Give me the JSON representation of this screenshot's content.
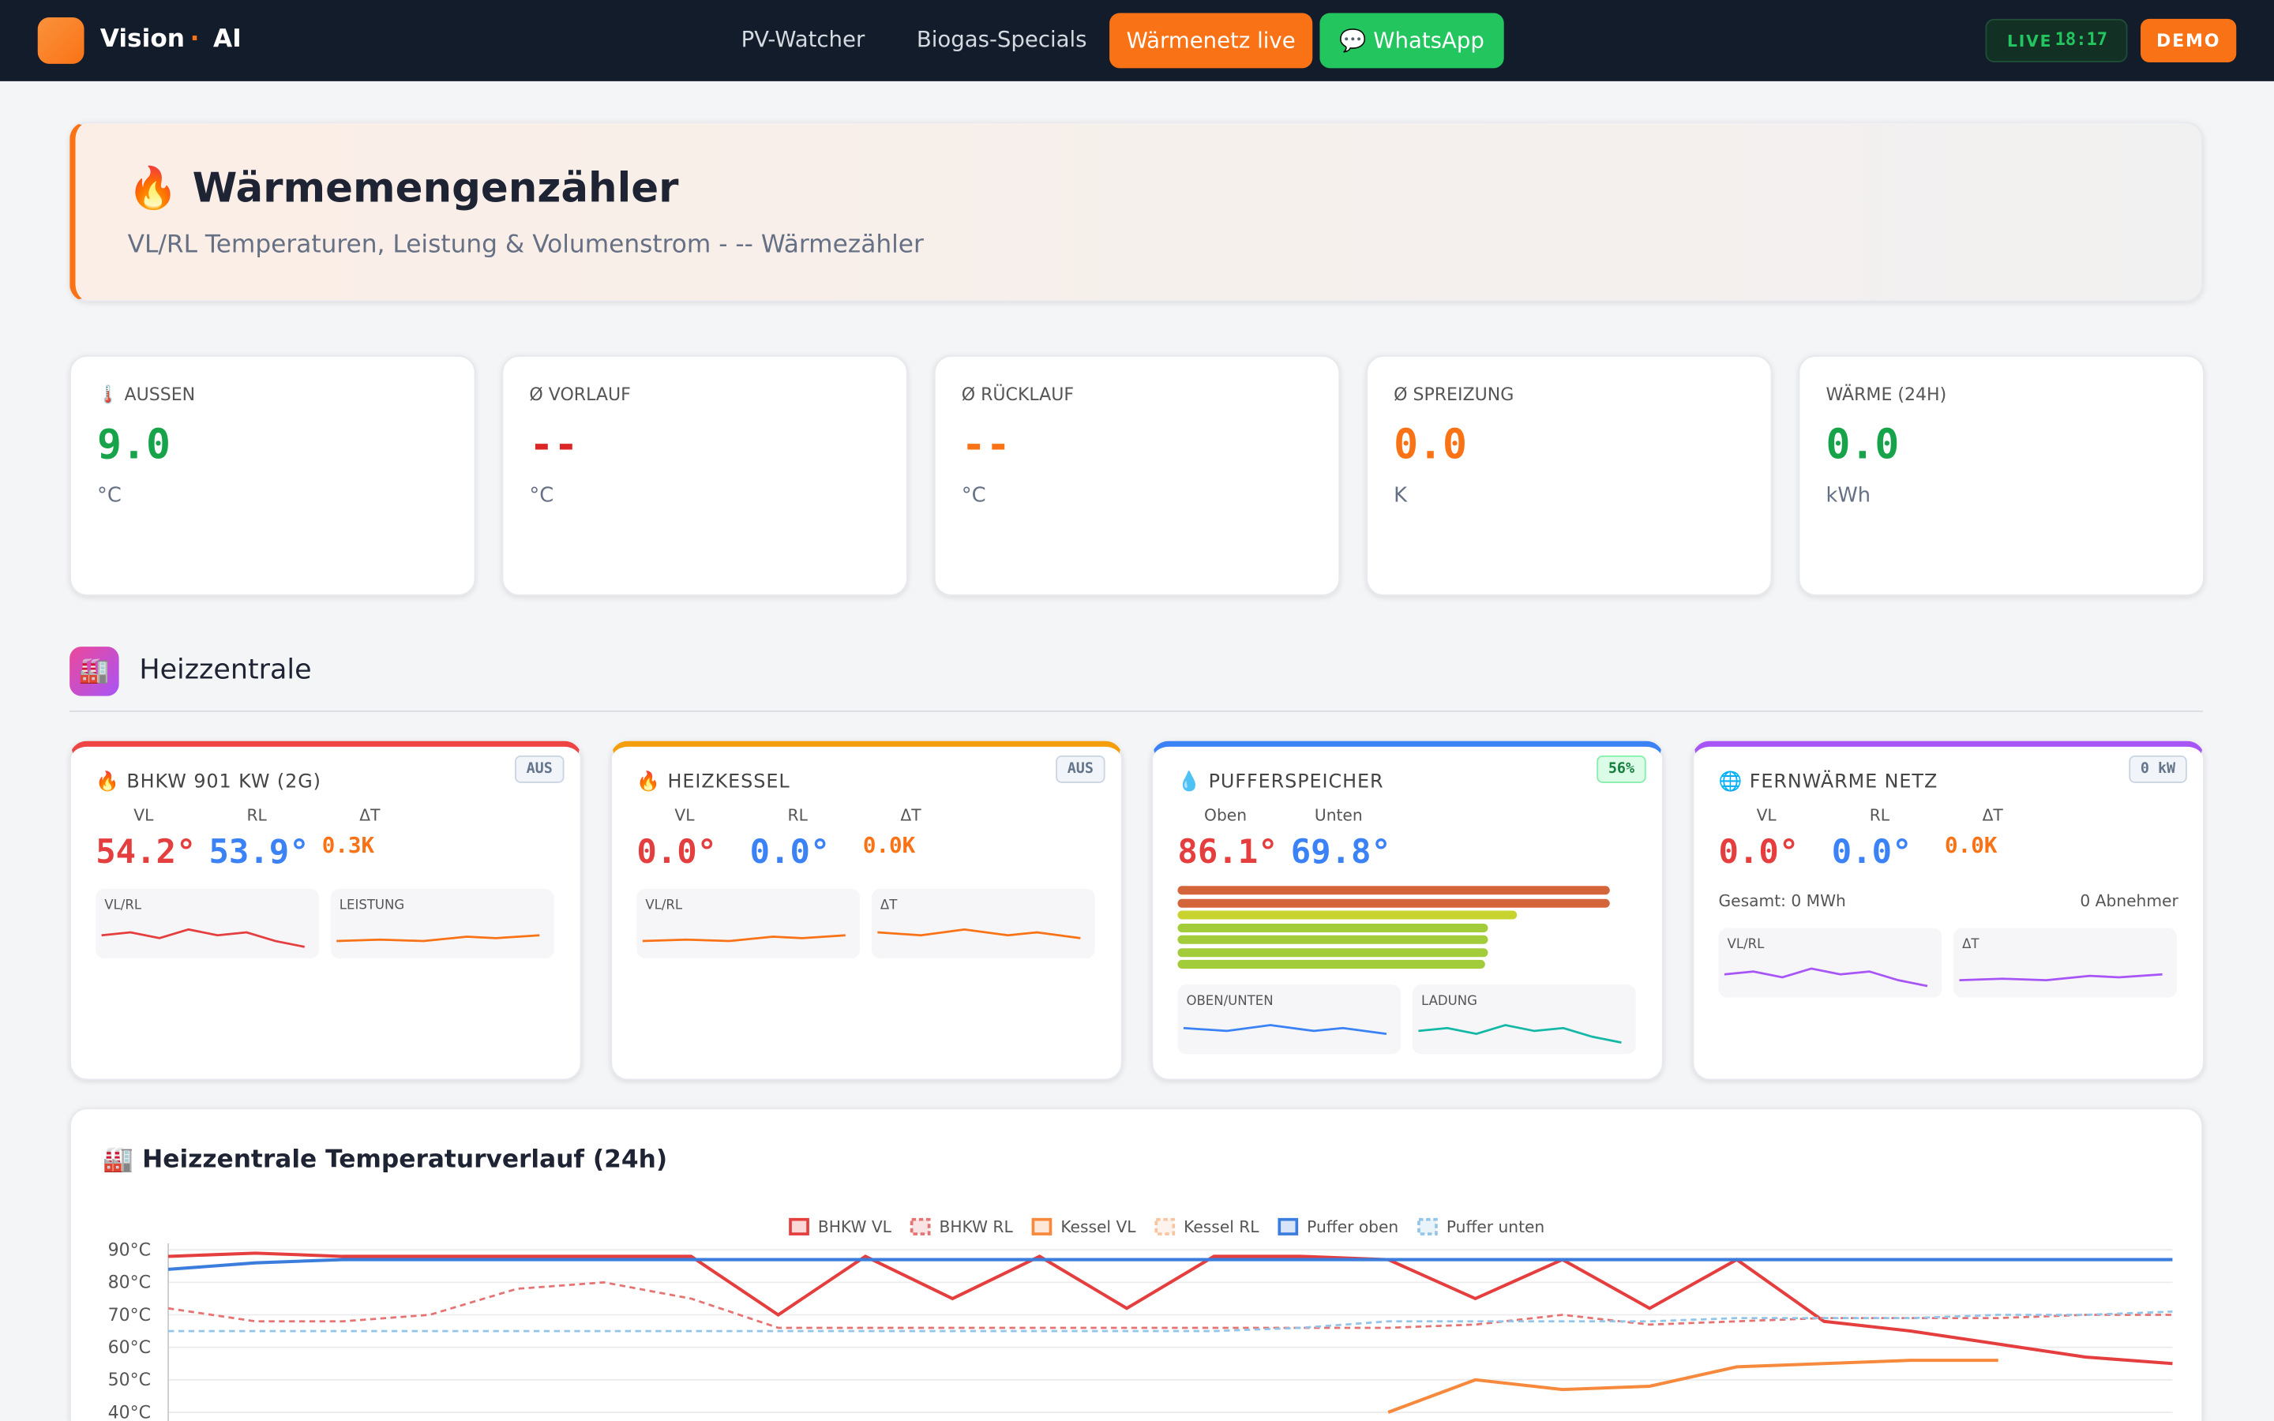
{
  "nav": {
    "brand": "Vision",
    "sep": "·",
    "brand2": "AI",
    "links": [
      "PV-Watcher",
      "Biogas-Specials",
      "Wärmenetz live",
      "💬 WhatsApp"
    ],
    "live": "LIVE",
    "time": "18:17",
    "demo": "DEMO"
  },
  "header": {
    "title": "🔥 Wärmemengenzähler",
    "subtitle": "VL/RL Temperaturen, Leistung & Volumenstrom - -- Wärmezähler"
  },
  "stats": [
    {
      "label": "🌡️ AUSSEN",
      "value": "9.0",
      "unit": "°C",
      "color": "#16a34a"
    },
    {
      "label": "Ø VORLAUF",
      "value": "--",
      "unit": "°C",
      "color": "#dc2626"
    },
    {
      "label": "Ø RÜCKLAUF",
      "value": "--",
      "unit": "°C",
      "color": "#f97316"
    },
    {
      "label": "Ø SPREIZUNG",
      "value": "0.0",
      "unit": "K",
      "color": "#f97316"
    },
    {
      "label": "WÄRME (24H)",
      "value": "0.0",
      "unit": "kWh",
      "color": "#16a34a"
    }
  ],
  "section": {
    "icon": "🏭",
    "title": "Heizzentrale"
  },
  "units": [
    {
      "title": "🔥 BHKW 901 KW (2G)",
      "badge": "AUS",
      "accent": "#ef4444",
      "labels": [
        "VL",
        "RL",
        "ΔT"
      ],
      "values": [
        "54.2°",
        "53.9°",
        "0.3K"
      ],
      "sparks": [
        "VL/RL",
        "LEISTUNG"
      ]
    },
    {
      "title": "🔥 HEIZKESSEL",
      "badge": "AUS",
      "accent": "#f59e0b",
      "labels": [
        "VL",
        "RL",
        "ΔT"
      ],
      "values": [
        "0.0°",
        "0.0°",
        "0.0K"
      ],
      "sparks": [
        "VL/RL",
        "ΔT"
      ]
    },
    {
      "title": "💧 PUFFERSPEICHER",
      "badge": "56%",
      "accent": "#3b82f6",
      "labels": [
        "Oben",
        "Unten"
      ],
      "values": [
        "86.1°",
        "69.8°"
      ],
      "sparks": [
        "OBEN/UNTEN",
        "LADUNG"
      ]
    },
    {
      "title": "🌐 FERNWÄRME NETZ",
      "badge": "0 kW",
      "accent": "#a855f7",
      "labels": [
        "VL",
        "RL",
        "ΔT"
      ],
      "values": [
        "0.0°",
        "0.0°",
        "0.0K"
      ],
      "total": "Gesamt: 0 MWh",
      "consumers": "0 Abnehmer",
      "sparks": [
        "VL/RL",
        "ΔT"
      ]
    }
  ],
  "chart": {
    "type": "line",
    "title": "🏭 Heizzentrale Temperaturverlauf (24h)",
    "ylim": [
      37,
      92
    ],
    "yticks": [
      {
        "value": 90,
        "label": "90°C"
      },
      {
        "value": 80,
        "label": "80°C"
      },
      {
        "value": 70,
        "label": "70°C"
      },
      {
        "value": 60,
        "label": "60°C"
      },
      {
        "value": 50,
        "label": "50°C"
      },
      {
        "value": 40,
        "label": "40°C"
      }
    ],
    "grid": true,
    "series": [
      {
        "name": "BHKW VL",
        "color": "#e53e3e",
        "dashed": false,
        "values": [
          88,
          89,
          88,
          88,
          88,
          88,
          88,
          70,
          88,
          75,
          88,
          72,
          88,
          88,
          87,
          75,
          87,
          72,
          87,
          68,
          65,
          61,
          57,
          55
        ]
      },
      {
        "name": "BHKW RL",
        "color": "#e57373",
        "dashed": true,
        "values": [
          72,
          68,
          68,
          70,
          78,
          80,
          75,
          66,
          66,
          66,
          66,
          66,
          66,
          66,
          66,
          67,
          70,
          67,
          68,
          69,
          69,
          69,
          70,
          70
        ]
      },
      {
        "name": "Kessel VL",
        "color": "#f6893b",
        "dashed": false,
        "values": [
          null,
          null,
          null,
          null,
          null,
          null,
          null,
          null,
          null,
          null,
          null,
          null,
          null,
          null,
          40,
          50,
          47,
          48,
          54,
          55,
          56,
          56,
          null,
          null
        ]
      },
      {
        "name": "Kessel RL",
        "color": "#f7c59f",
        "dashed": true,
        "values": [
          null,
          null,
          null,
          null,
          null,
          null,
          null,
          null,
          null,
          null,
          null,
          null,
          null,
          null,
          null,
          null,
          null,
          null,
          null,
          null,
          null,
          null,
          null,
          null
        ]
      },
      {
        "name": "Puffer oben",
        "color": "#3b7ddd",
        "dashed": false,
        "values": [
          84,
          86,
          87,
          87,
          87,
          87,
          87,
          87,
          87,
          87,
          87,
          87,
          87,
          87,
          87,
          87,
          87,
          87,
          87,
          87,
          87,
          87,
          87,
          87
        ]
      },
      {
        "name": "Puffer unten",
        "color": "#93c5e8",
        "dashed": true,
        "values": [
          65,
          65,
          65,
          65,
          65,
          65,
          65,
          65,
          65,
          65,
          65,
          65,
          65,
          66,
          68,
          68,
          68,
          68,
          69,
          69,
          69,
          70,
          70,
          71
        ]
      }
    ]
  }
}
